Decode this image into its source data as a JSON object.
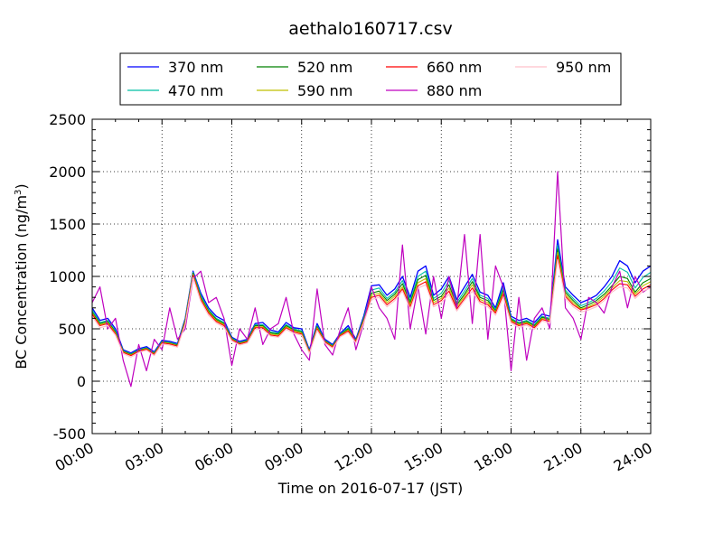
{
  "chart_data": {
    "type": "line",
    "title": "aethalo160717.csv",
    "xlabel": "Time on 2016-07-17 (JST)",
    "ylabel_main": "BC Concentration (ng/m",
    "ylabel_sup": "3",
    "ylabel_close": ")",
    "xlim": [
      "00:00",
      "24:00"
    ],
    "ylim": [
      -500,
      2500
    ],
    "grid": true,
    "legend_position": "top-center",
    "x_tick_labels": [
      "00:00",
      "03:00",
      "06:00",
      "09:00",
      "12:00",
      "15:00",
      "18:00",
      "21:00",
      "24:00"
    ],
    "y_tick_labels": [
      "-500",
      "0",
      "500",
      "1000",
      "1500",
      "2000",
      "2500"
    ],
    "x": [
      "00:00",
      "00:20",
      "00:40",
      "01:00",
      "01:20",
      "01:40",
      "02:00",
      "02:20",
      "02:40",
      "03:00",
      "03:20",
      "03:40",
      "04:00",
      "04:20",
      "04:40",
      "05:00",
      "05:20",
      "05:40",
      "06:00",
      "06:20",
      "06:40",
      "07:00",
      "07:20",
      "07:40",
      "08:00",
      "08:20",
      "08:40",
      "09:00",
      "09:20",
      "09:40",
      "10:00",
      "10:20",
      "10:40",
      "11:00",
      "11:20",
      "11:40",
      "12:00",
      "12:20",
      "12:40",
      "13:00",
      "13:20",
      "13:40",
      "14:00",
      "14:20",
      "14:40",
      "15:00",
      "15:20",
      "15:40",
      "16:00",
      "16:20",
      "16:40",
      "17:00",
      "17:20",
      "17:40",
      "18:00",
      "18:20",
      "18:40",
      "19:00",
      "19:20",
      "19:40",
      "20:00",
      "20:20",
      "20:40",
      "21:00",
      "21:20",
      "21:40",
      "22:00",
      "22:20",
      "22:40",
      "23:00",
      "23:20",
      "23:40",
      "24:00"
    ],
    "series": [
      {
        "name": "370 nm",
        "color": "#0000ff",
        "width": 1.3,
        "values": [
          700,
          580,
          600,
          500,
          300,
          270,
          310,
          330,
          280,
          390,
          380,
          360,
          600,
          1050,
          840,
          700,
          620,
          580,
          420,
          380,
          400,
          550,
          560,
          490,
          470,
          560,
          510,
          500,
          300,
          550,
          400,
          350,
          460,
          530,
          400,
          620,
          910,
          920,
          820,
          880,
          1000,
          800,
          1050,
          1100,
          820,
          880,
          1000,
          780,
          900,
          1020,
          850,
          820,
          700,
          940,
          620,
          580,
          600,
          560,
          640,
          620,
          1350,
          900,
          820,
          750,
          780,
          820,
          900,
          1000,
          1150,
          1100,
          940,
          1050,
          1100
        ]
      },
      {
        "name": "470 nm",
        "color": "#00bfa5",
        "width": 1.1,
        "values": [
          680,
          560,
          580,
          480,
          290,
          260,
          300,
          320,
          270,
          380,
          370,
          350,
          590,
          1040,
          820,
          680,
          600,
          560,
          410,
          370,
          390,
          540,
          540,
          470,
          460,
          540,
          500,
          480,
          290,
          530,
          390,
          340,
          450,
          510,
          390,
          600,
          870,
          890,
          790,
          850,
          960,
          770,
          1000,
          1050,
          790,
          840,
          960,
          750,
          860,
          980,
          820,
          790,
          680,
          900,
          600,
          560,
          580,
          540,
          620,
          600,
          1300,
          870,
          790,
          720,
          750,
          790,
          860,
          950,
          1080,
          1040,
          890,
          990,
          1040
        ]
      },
      {
        "name": "520 nm",
        "color": "#008000",
        "width": 1.1,
        "values": [
          660,
          550,
          570,
          470,
          285,
          255,
          295,
          315,
          265,
          375,
          365,
          345,
          580,
          1030,
          800,
          670,
          590,
          550,
          405,
          365,
          385,
          530,
          530,
          460,
          450,
          530,
          490,
          470,
          285,
          520,
          385,
          335,
          445,
          500,
          385,
          590,
          840,
          860,
          770,
          830,
          930,
          750,
          970,
          1010,
          770,
          810,
          920,
          730,
          830,
          950,
          800,
          770,
          670,
          870,
          590,
          550,
          570,
          530,
          610,
          590,
          1260,
          850,
          770,
          700,
          730,
          770,
          830,
          910,
          1000,
          980,
          850,
          940,
          980
        ]
      },
      {
        "name": "590 nm",
        "color": "#bfbf00",
        "width": 1.1,
        "values": [
          650,
          540,
          560,
          460,
          280,
          250,
          290,
          310,
          260,
          370,
          360,
          340,
          570,
          1020,
          790,
          660,
          580,
          540,
          400,
          360,
          380,
          520,
          520,
          450,
          440,
          520,
          480,
          460,
          280,
          510,
          380,
          330,
          440,
          490,
          380,
          580,
          820,
          840,
          750,
          810,
          900,
          730,
          940,
          980,
          750,
          790,
          890,
          710,
          810,
          920,
          780,
          750,
          660,
          850,
          580,
          540,
          560,
          520,
          600,
          580,
          1230,
          830,
          750,
          690,
          710,
          750,
          810,
          890,
          960,
          950,
          830,
          910,
          950
        ]
      },
      {
        "name": "660 nm",
        "color": "#ff0000",
        "width": 1.1,
        "values": [
          640,
          530,
          550,
          450,
          275,
          245,
          285,
          305,
          255,
          365,
          355,
          335,
          560,
          1010,
          780,
          650,
          570,
          530,
          395,
          355,
          375,
          510,
          510,
          440,
          430,
          510,
          470,
          450,
          275,
          500,
          375,
          325,
          435,
          480,
          375,
          570,
          800,
          820,
          730,
          790,
          880,
          710,
          910,
          950,
          730,
          770,
          860,
          690,
          790,
          890,
          760,
          730,
          650,
          830,
          570,
          530,
          550,
          510,
          590,
          570,
          1200,
          810,
          730,
          680,
          700,
          730,
          790,
          870,
          930,
          920,
          810,
          880,
          920
        ]
      },
      {
        "name": "880 nm",
        "color": "#bf00bf",
        "width": 1.2,
        "values": [
          750,
          900,
          500,
          600,
          200,
          -50,
          350,
          100,
          400,
          300,
          700,
          400,
          500,
          980,
          1050,
          750,
          800,
          600,
          150,
          500,
          400,
          700,
          350,
          500,
          550,
          800,
          450,
          300,
          200,
          880,
          350,
          250,
          500,
          700,
          300,
          550,
          900,
          700,
          600,
          400,
          1300,
          500,
          900,
          450,
          1000,
          600,
          1000,
          700,
          1400,
          550,
          1400,
          400,
          1100,
          900,
          100,
          800,
          200,
          600,
          700,
          500,
          2000,
          700,
          600,
          400,
          800,
          750,
          650,
          900,
          1050,
          700,
          1000,
          850,
          900
        ]
      },
      {
        "name": "950 nm",
        "color": "#ffc0cb",
        "width": 1.2,
        "values": [
          620,
          510,
          530,
          440,
          265,
          230,
          275,
          295,
          245,
          355,
          345,
          325,
          545,
          990,
          760,
          630,
          555,
          515,
          385,
          345,
          365,
          495,
          495,
          430,
          420,
          495,
          455,
          440,
          265,
          485,
          365,
          315,
          425,
          465,
          365,
          555,
          780,
          800,
          710,
          770,
          860,
          690,
          890,
          920,
          710,
          750,
          830,
          670,
          770,
          860,
          740,
          710,
          630,
          800,
          555,
          515,
          535,
          495,
          575,
          555,
          1160,
          790,
          710,
          660,
          680,
          710,
          770,
          850,
          900,
          890,
          790,
          860,
          890
        ]
      }
    ]
  }
}
